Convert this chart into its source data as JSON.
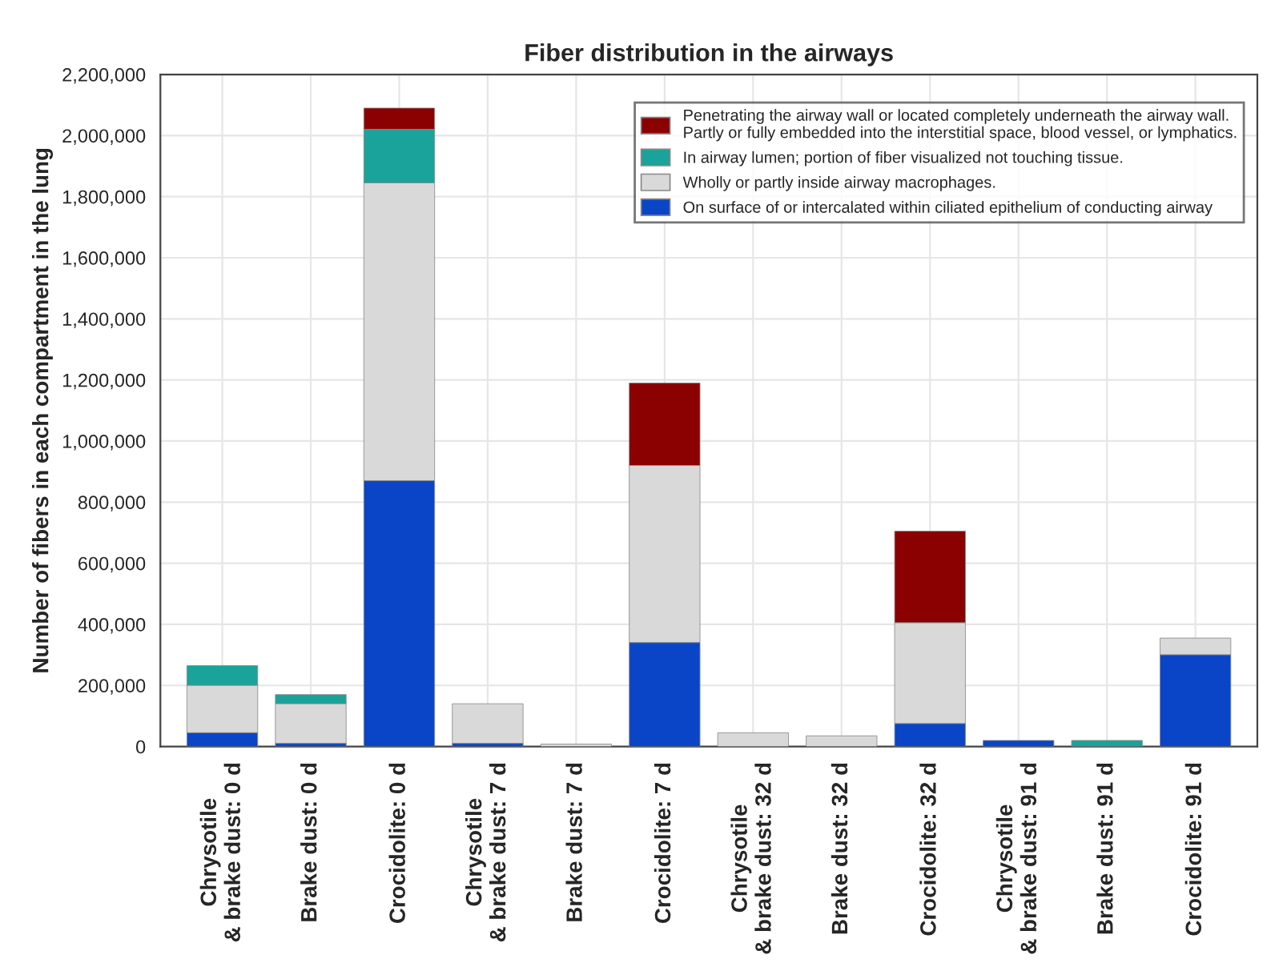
{
  "chart_data": {
    "type": "bar",
    "stacked": true,
    "title": "Fiber distribution in the airways",
    "ylabel": "Number of fibers in each compartment in the lung",
    "categories": [
      "Chrysotile\n& brake dust: 0 d",
      "Brake dust: 0 d",
      "Crocidolite: 0 d",
      "Chrysotile\n& brake dust: 7 d",
      "Brake dust: 7 d",
      "Crocidolite: 7 d",
      "Chrysotile\n& brake dust: 32 d",
      "Brake dust: 32 d",
      "Crocidolite: 32 d",
      "Chrysotile\n& brake dust: 91 d",
      "Brake dust: 91 d",
      "Crocidolite: 91 d"
    ],
    "series": [
      {
        "name": "On surface of or intercalated within ciliated epithelium of conducting airway",
        "color": "#0a45c8",
        "values": [
          45000,
          10000,
          870000,
          10000,
          0,
          340000,
          0,
          0,
          75000,
          20000,
          0,
          300000
        ]
      },
      {
        "name": "Wholly or partly inside airway macrophages.",
        "color": "#d9d9d9",
        "values": [
          155000,
          130000,
          975000,
          130000,
          8000,
          580000,
          45000,
          35000,
          330000,
          0,
          0,
          55000
        ]
      },
      {
        "name": "In airway lumen; portion of fiber visualized not touching tissue.",
        "color": "#1aa39a",
        "values": [
          65000,
          30000,
          175000,
          0,
          0,
          0,
          0,
          0,
          0,
          0,
          20000,
          0
        ]
      },
      {
        "name": "Penetrating the airway wall or located completely underneath the airway wall.\nPartly or fully embedded into the interstitial space, blood vessel, or lymphatics.",
        "color": "#8b0000",
        "values": [
          0,
          0,
          70000,
          0,
          0,
          270000,
          0,
          0,
          300000,
          0,
          0,
          0
        ]
      }
    ],
    "ylim": [
      0,
      2200000
    ],
    "yticks": [
      {
        "value": 0,
        "label": "0"
      },
      {
        "value": 200000,
        "label": "200,000"
      },
      {
        "value": 400000,
        "label": "400,000"
      },
      {
        "value": 600000,
        "label": "600,000"
      },
      {
        "value": 800000,
        "label": "800,000"
      },
      {
        "value": 1000000,
        "label": "1,000,000"
      },
      {
        "value": 1200000,
        "label": "1,200,000"
      },
      {
        "value": 1400000,
        "label": "1,400,000"
      },
      {
        "value": 1600000,
        "label": "1,600,000"
      },
      {
        "value": 1800000,
        "label": "1,800,000"
      },
      {
        "value": 2000000,
        "label": "2,000,000"
      },
      {
        "value": 2200000,
        "label": "2,200,000"
      }
    ],
    "grid": true,
    "legend": "top right"
  }
}
